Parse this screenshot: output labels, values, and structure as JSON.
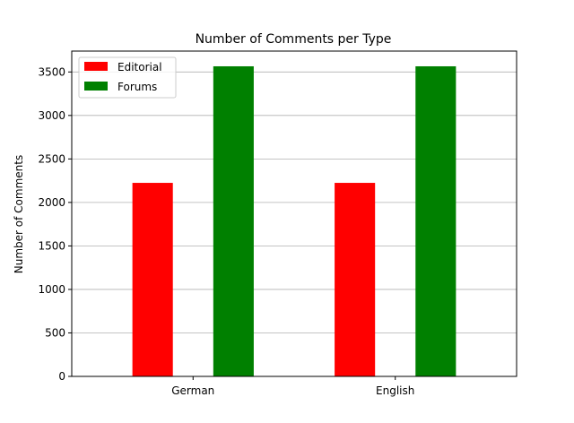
{
  "chart_data": {
    "type": "bar",
    "title": "Number of Comments per Type",
    "xlabel": "",
    "ylabel": "Number of Comments",
    "categories": [
      "German",
      "English"
    ],
    "series": [
      {
        "name": "Editorial",
        "color": "#ff0000",
        "values": [
          2225,
          2225
        ]
      },
      {
        "name": "Forums",
        "color": "#008000",
        "values": [
          3565,
          3565
        ]
      }
    ],
    "ylim": [
      0,
      3740
    ],
    "yticks": [
      0,
      500,
      1000,
      1500,
      2000,
      2500,
      3000,
      3500
    ],
    "grid": "y",
    "legend_position": "top-left"
  }
}
